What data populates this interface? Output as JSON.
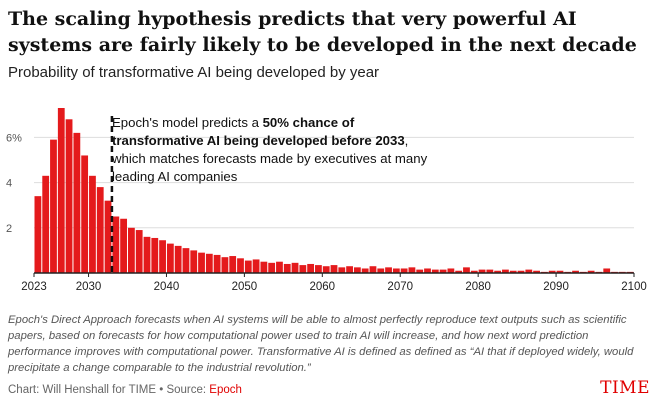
{
  "header": {
    "title": "The scaling hypothesis predicts that very powerful AI systems are fairly likely to be developed in the next decade",
    "subtitle": "Probability of transformative AI being developed by year"
  },
  "annotation": {
    "part1": "Epoch's model predicts a ",
    "bold": "50% chance of transformative AI being developed before 2033",
    "part2": ", which matches forecasts made by executives at many leading AI companies"
  },
  "footer": {
    "notes": "Epoch's Direct Approach forecasts when AI systems will be able to almost perfectly reproduce text outputs such as scientific papers, based on forecasts for how computational power used to train AI will increase, and how next word prediction performance improves with computational power. Transformative AI is defined as defined as “AI that if deployed widely, would precipitate a change comparable to the industrial revolution.”",
    "credit": "Chart: Will Henshall for TIME • Source: ",
    "source": "Epoch",
    "brand": "TIME"
  },
  "colors": {
    "bar": "#e41a1c",
    "grid": "#dddddd",
    "brand": "#e00000"
  },
  "chart_data": {
    "type": "bar",
    "title": "Probability of transformative AI being developed by year",
    "xlabel": "",
    "ylabel": "",
    "xlim": [
      2023,
      2100
    ],
    "ylim": [
      0,
      7.3
    ],
    "y_ticks": [
      {
        "value": 2,
        "label": "2"
      },
      {
        "value": 4,
        "label": "4"
      },
      {
        "value": 6,
        "label": "6%"
      }
    ],
    "x_ticks": [
      {
        "value": 2023,
        "label": "2023"
      },
      {
        "value": 2030,
        "label": "2030"
      },
      {
        "value": 2040,
        "label": "2040"
      },
      {
        "value": 2050,
        "label": "2050"
      },
      {
        "value": 2060,
        "label": "2060"
      },
      {
        "value": 2070,
        "label": "2070"
      },
      {
        "value": 2080,
        "label": "2080"
      },
      {
        "value": 2090,
        "label": "2090"
      },
      {
        "value": 2100,
        "label": "2100"
      }
    ],
    "marker": {
      "year": 2033,
      "label": "50% chance of transformative AI being developed before 2033"
    },
    "series": [
      {
        "name": "Probability (%)",
        "x": [
          2023,
          2024,
          2025,
          2026,
          2027,
          2028,
          2029,
          2030,
          2031,
          2032,
          2033,
          2034,
          2035,
          2036,
          2037,
          2038,
          2039,
          2040,
          2041,
          2042,
          2043,
          2044,
          2045,
          2046,
          2047,
          2048,
          2049,
          2050,
          2051,
          2052,
          2053,
          2054,
          2055,
          2056,
          2057,
          2058,
          2059,
          2060,
          2061,
          2062,
          2063,
          2064,
          2065,
          2066,
          2067,
          2068,
          2069,
          2070,
          2071,
          2072,
          2073,
          2074,
          2075,
          2076,
          2077,
          2078,
          2079,
          2080,
          2081,
          2082,
          2083,
          2084,
          2085,
          2086,
          2087,
          2088,
          2089,
          2090,
          2091,
          2092,
          2093,
          2094,
          2095,
          2096,
          2097,
          2098,
          2099
        ],
        "values": [
          3.4,
          4.3,
          5.9,
          7.3,
          6.8,
          6.2,
          5.2,
          4.3,
          3.8,
          3.2,
          2.5,
          2.4,
          2.0,
          1.9,
          1.6,
          1.55,
          1.45,
          1.3,
          1.2,
          1.1,
          1.0,
          0.9,
          0.85,
          0.8,
          0.7,
          0.75,
          0.65,
          0.55,
          0.6,
          0.5,
          0.45,
          0.5,
          0.4,
          0.45,
          0.35,
          0.4,
          0.35,
          0.3,
          0.35,
          0.25,
          0.3,
          0.25,
          0.2,
          0.3,
          0.2,
          0.25,
          0.2,
          0.2,
          0.25,
          0.15,
          0.2,
          0.15,
          0.15,
          0.2,
          0.1,
          0.25,
          0.1,
          0.15,
          0.15,
          0.1,
          0.15,
          0.1,
          0.1,
          0.15,
          0.1,
          0.05,
          0.1,
          0.1,
          0.05,
          0.1,
          0.05,
          0.1,
          0.05,
          0.2,
          0.05,
          0.05,
          0.05
        ]
      }
    ]
  }
}
